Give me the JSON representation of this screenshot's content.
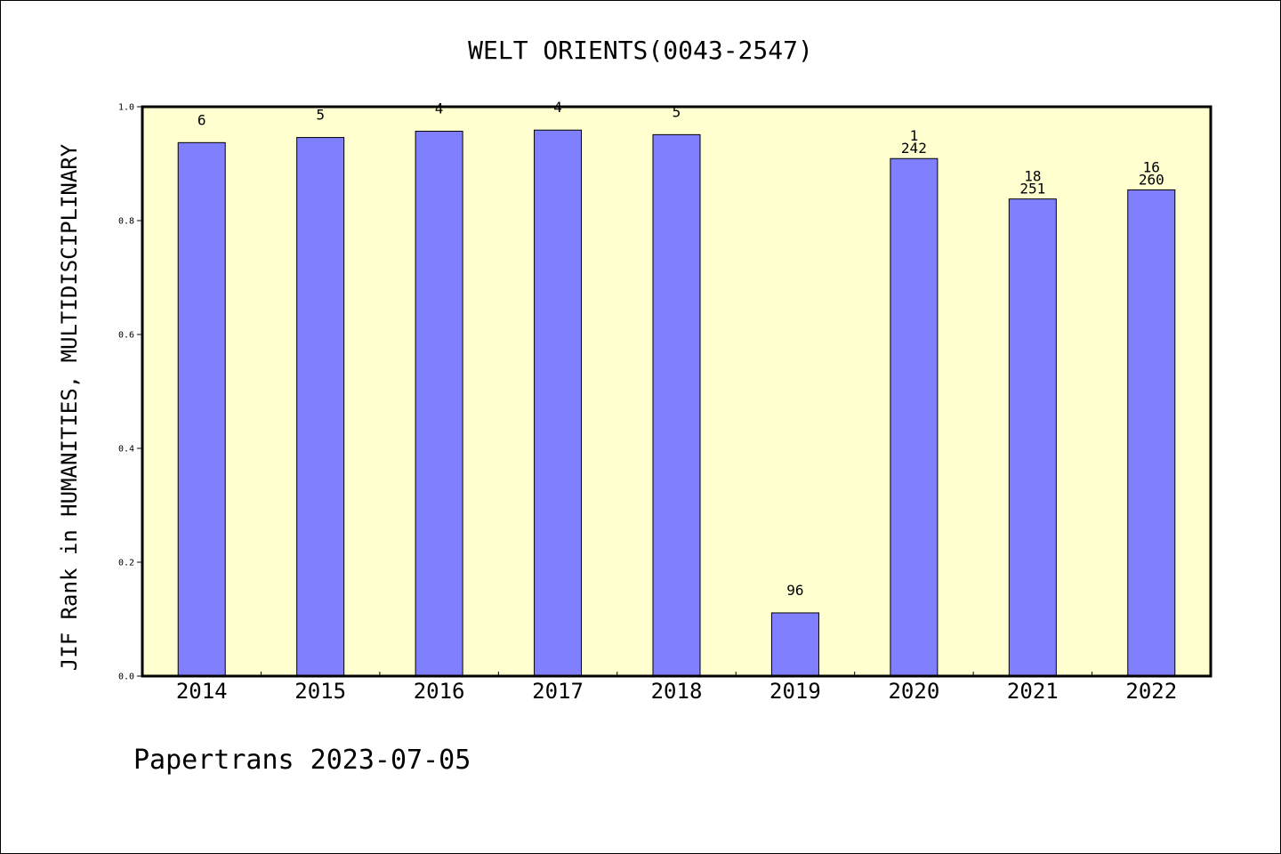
{
  "chart_data": {
    "type": "bar",
    "title": "WELT ORIENTS(0043-2547)",
    "xlabel": "",
    "ylabel": "JIF Rank in HUMANITIES, MULTIDISCIPLINARY",
    "categories": [
      "2014",
      "2015",
      "2016",
      "2017",
      "2018",
      "2019",
      "2020",
      "2021",
      "2022"
    ],
    "series": [
      {
        "values": [
          0.937,
          0.946,
          0.957,
          0.959,
          0.951,
          0.111,
          0.909,
          0.838,
          0.854
        ]
      }
    ],
    "bar_labels": [
      [
        "6"
      ],
      [
        "5"
      ],
      [
        "4"
      ],
      [
        "4"
      ],
      [
        "5"
      ],
      [
        "96"
      ],
      [
        "1",
        "242"
      ],
      [
        "18",
        "251"
      ],
      [
        "16",
        "260"
      ]
    ],
    "ylim": [
      0.0,
      1.0
    ],
    "yticks": [
      "0.0",
      "0.2",
      "0.4",
      "0.6",
      "0.8",
      "1.0"
    ],
    "grid": false,
    "legend": "none",
    "colors": {
      "bar_fill": "#8080ff",
      "plot_background": "#ffffd0",
      "axis": "#000000"
    }
  },
  "footer": {
    "credit": "Papertrans 2023-07-05"
  }
}
